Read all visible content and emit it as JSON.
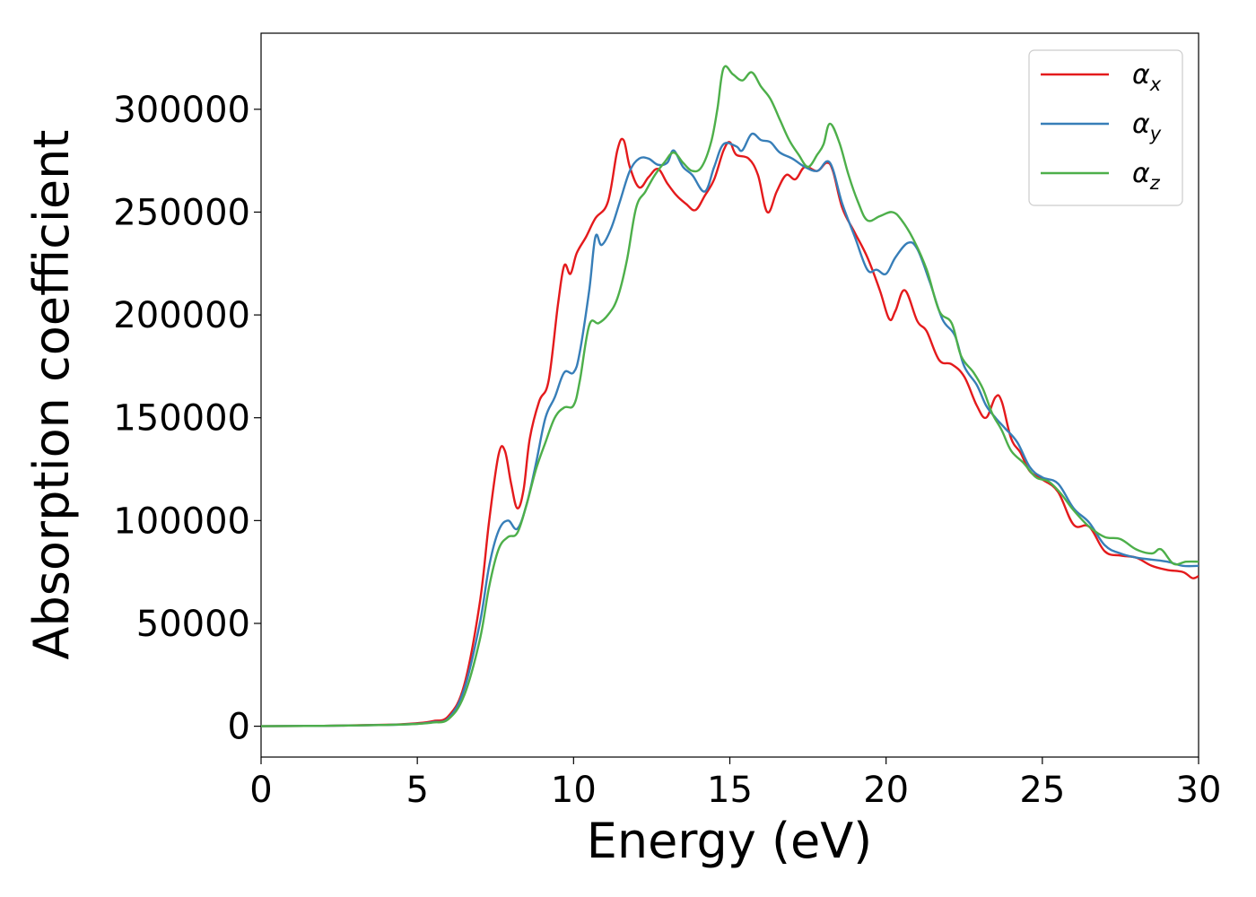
{
  "chart_data": {
    "type": "line",
    "title": "",
    "xlabel": "Energy (eV)",
    "ylabel": "Absorption coefficient",
    "xlim": [
      0,
      30
    ],
    "ylim": [
      -15000,
      337000
    ],
    "xticks": [
      0,
      5,
      10,
      15,
      20,
      25,
      30
    ],
    "yticks": [
      0,
      50000,
      100000,
      150000,
      200000,
      250000,
      300000
    ],
    "grid": false,
    "legend_position": "top-right",
    "series": [
      {
        "name": "αx",
        "symbol": "α",
        "subscript": "x",
        "color": "#e41a1c",
        "points": [
          [
            0,
            0
          ],
          [
            2,
            200
          ],
          [
            4,
            700
          ],
          [
            5,
            1500
          ],
          [
            5.5,
            2500
          ],
          [
            6,
            5000
          ],
          [
            6.5,
            20000
          ],
          [
            7,
            60000
          ],
          [
            7.3,
            100000
          ],
          [
            7.6,
            132000
          ],
          [
            7.8,
            134000
          ],
          [
            8,
            118000
          ],
          [
            8.2,
            106000
          ],
          [
            8.4,
            115000
          ],
          [
            8.6,
            140000
          ],
          [
            8.9,
            158000
          ],
          [
            9.2,
            168000
          ],
          [
            9.5,
            205000
          ],
          [
            9.7,
            224000
          ],
          [
            9.9,
            220000
          ],
          [
            10.1,
            230000
          ],
          [
            10.4,
            238000
          ],
          [
            10.7,
            247000
          ],
          [
            11.1,
            255000
          ],
          [
            11.4,
            280000
          ],
          [
            11.6,
            285000
          ],
          [
            11.8,
            272000
          ],
          [
            12.1,
            262000
          ],
          [
            12.4,
            267000
          ],
          [
            12.7,
            271000
          ],
          [
            13,
            264000
          ],
          [
            13.3,
            258000
          ],
          [
            13.6,
            254000
          ],
          [
            13.9,
            251000
          ],
          [
            14.2,
            258000
          ],
          [
            14.5,
            266000
          ],
          [
            14.8,
            280000
          ],
          [
            15,
            284000
          ],
          [
            15.2,
            278000
          ],
          [
            15.6,
            276000
          ],
          [
            15.9,
            268000
          ],
          [
            16.2,
            250000
          ],
          [
            16.5,
            260000
          ],
          [
            16.8,
            268000
          ],
          [
            17.1,
            266000
          ],
          [
            17.4,
            272000
          ],
          [
            17.8,
            270000
          ],
          [
            18.1,
            274000
          ],
          [
            18.3,
            270000
          ],
          [
            18.6,
            252000
          ],
          [
            19,
            240000
          ],
          [
            19.4,
            228000
          ],
          [
            19.8,
            212000
          ],
          [
            20.1,
            198000
          ],
          [
            20.3,
            202000
          ],
          [
            20.6,
            212000
          ],
          [
            21,
            197000
          ],
          [
            21.3,
            192000
          ],
          [
            21.7,
            178000
          ],
          [
            22.1,
            176000
          ],
          [
            22.5,
            170000
          ],
          [
            22.9,
            156000
          ],
          [
            23.2,
            150000
          ],
          [
            23.5,
            160000
          ],
          [
            23.7,
            158000
          ],
          [
            24,
            140000
          ],
          [
            24.3,
            133000
          ],
          [
            24.6,
            124000
          ],
          [
            25,
            120000
          ],
          [
            25.5,
            114000
          ],
          [
            26,
            98000
          ],
          [
            26.5,
            97000
          ],
          [
            27,
            85000
          ],
          [
            27.5,
            83000
          ],
          [
            28,
            82000
          ],
          [
            28.5,
            78000
          ],
          [
            29,
            76000
          ],
          [
            29.5,
            75000
          ],
          [
            29.8,
            72000
          ],
          [
            30,
            73000
          ]
        ]
      },
      {
        "name": "αy",
        "symbol": "α",
        "subscript": "y",
        "color": "#377eb8",
        "points": [
          [
            0,
            0
          ],
          [
            2,
            200
          ],
          [
            4,
            600
          ],
          [
            5,
            1200
          ],
          [
            5.5,
            2000
          ],
          [
            6,
            4000
          ],
          [
            6.5,
            18000
          ],
          [
            7,
            50000
          ],
          [
            7.3,
            78000
          ],
          [
            7.6,
            95000
          ],
          [
            7.9,
            100000
          ],
          [
            8.2,
            96000
          ],
          [
            8.5,
            108000
          ],
          [
            8.8,
            128000
          ],
          [
            9.1,
            150000
          ],
          [
            9.4,
            160000
          ],
          [
            9.7,
            172000
          ],
          [
            10,
            172000
          ],
          [
            10.2,
            182000
          ],
          [
            10.5,
            212000
          ],
          [
            10.7,
            238000
          ],
          [
            10.9,
            234000
          ],
          [
            11.2,
            242000
          ],
          [
            11.5,
            256000
          ],
          [
            11.8,
            270000
          ],
          [
            12.1,
            276000
          ],
          [
            12.4,
            276000
          ],
          [
            12.7,
            273000
          ],
          [
            13,
            274000
          ],
          [
            13.2,
            280000
          ],
          [
            13.5,
            272000
          ],
          [
            13.8,
            268000
          ],
          [
            14.2,
            260000
          ],
          [
            14.5,
            272000
          ],
          [
            14.8,
            283000
          ],
          [
            15.2,
            282000
          ],
          [
            15.4,
            280000
          ],
          [
            15.7,
            288000
          ],
          [
            16,
            285000
          ],
          [
            16.3,
            284000
          ],
          [
            16.6,
            279000
          ],
          [
            17,
            276000
          ],
          [
            17.4,
            272000
          ],
          [
            17.8,
            270000
          ],
          [
            18.2,
            274000
          ],
          [
            18.6,
            254000
          ],
          [
            19,
            238000
          ],
          [
            19.4,
            222000
          ],
          [
            19.7,
            222000
          ],
          [
            20,
            220000
          ],
          [
            20.3,
            228000
          ],
          [
            20.7,
            235000
          ],
          [
            21,
            232000
          ],
          [
            21.4,
            216000
          ],
          [
            21.8,
            198000
          ],
          [
            22.2,
            190000
          ],
          [
            22.5,
            175000
          ],
          [
            22.9,
            166000
          ],
          [
            23.2,
            156000
          ],
          [
            23.5,
            150000
          ],
          [
            23.8,
            145000
          ],
          [
            24.2,
            138000
          ],
          [
            24.6,
            126000
          ],
          [
            25,
            121000
          ],
          [
            25.5,
            118000
          ],
          [
            26,
            106000
          ],
          [
            26.5,
            99000
          ],
          [
            27,
            88000
          ],
          [
            27.5,
            84000
          ],
          [
            28,
            82000
          ],
          [
            28.5,
            81000
          ],
          [
            29,
            80000
          ],
          [
            29.5,
            78000
          ],
          [
            30,
            78000
          ]
        ]
      },
      {
        "name": "αz",
        "symbol": "α",
        "subscript": "z",
        "color": "#4daf4a",
        "points": [
          [
            0,
            0
          ],
          [
            2,
            200
          ],
          [
            4,
            600
          ],
          [
            5,
            1100
          ],
          [
            5.5,
            1800
          ],
          [
            6,
            3500
          ],
          [
            6.5,
            15000
          ],
          [
            7,
            42000
          ],
          [
            7.3,
            68000
          ],
          [
            7.6,
            86000
          ],
          [
            7.9,
            92000
          ],
          [
            8.2,
            94000
          ],
          [
            8.5,
            108000
          ],
          [
            8.8,
            125000
          ],
          [
            9.1,
            138000
          ],
          [
            9.4,
            150000
          ],
          [
            9.7,
            155000
          ],
          [
            10,
            156000
          ],
          [
            10.2,
            168000
          ],
          [
            10.5,
            195000
          ],
          [
            10.8,
            196000
          ],
          [
            11.1,
            200000
          ],
          [
            11.4,
            208000
          ],
          [
            11.7,
            226000
          ],
          [
            12,
            252000
          ],
          [
            12.3,
            260000
          ],
          [
            12.6,
            268000
          ],
          [
            12.9,
            274000
          ],
          [
            13.2,
            279000
          ],
          [
            13.5,
            274000
          ],
          [
            13.8,
            270000
          ],
          [
            14.1,
            272000
          ],
          [
            14.4,
            284000
          ],
          [
            14.6,
            300000
          ],
          [
            14.8,
            320000
          ],
          [
            15.1,
            317000
          ],
          [
            15.4,
            314000
          ],
          [
            15.7,
            318000
          ],
          [
            16,
            311000
          ],
          [
            16.3,
            305000
          ],
          [
            16.6,
            295000
          ],
          [
            16.9,
            285000
          ],
          [
            17.2,
            278000
          ],
          [
            17.5,
            272000
          ],
          [
            17.8,
            278000
          ],
          [
            18,
            283000
          ],
          [
            18.2,
            293000
          ],
          [
            18.5,
            284000
          ],
          [
            18.8,
            268000
          ],
          [
            19.1,
            255000
          ],
          [
            19.4,
            246000
          ],
          [
            19.8,
            248000
          ],
          [
            20.2,
            250000
          ],
          [
            20.5,
            246000
          ],
          [
            20.9,
            236000
          ],
          [
            21.3,
            222000
          ],
          [
            21.7,
            202000
          ],
          [
            22.1,
            196000
          ],
          [
            22.4,
            180000
          ],
          [
            22.8,
            172000
          ],
          [
            23.1,
            164000
          ],
          [
            23.4,
            152000
          ],
          [
            23.7,
            144000
          ],
          [
            24,
            134000
          ],
          [
            24.4,
            128000
          ],
          [
            24.8,
            121000
          ],
          [
            25.2,
            119000
          ],
          [
            25.6,
            113000
          ],
          [
            26,
            105000
          ],
          [
            26.5,
            97000
          ],
          [
            27,
            92000
          ],
          [
            27.5,
            91000
          ],
          [
            28,
            86000
          ],
          [
            28.5,
            84000
          ],
          [
            28.8,
            86000
          ],
          [
            29.2,
            79000
          ],
          [
            29.6,
            80000
          ],
          [
            30,
            80000
          ]
        ]
      }
    ]
  }
}
